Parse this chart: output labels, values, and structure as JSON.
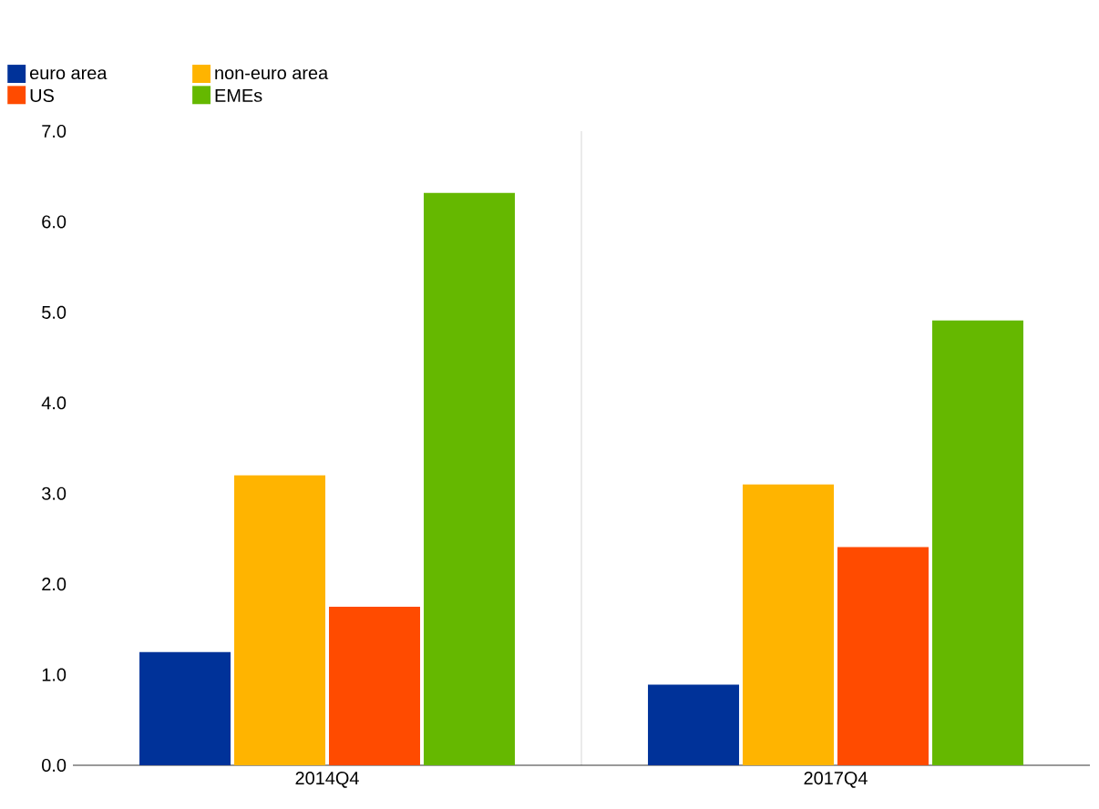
{
  "chart_data": {
    "type": "bar",
    "categories": [
      "2014Q4",
      "2017Q4"
    ],
    "series": [
      {
        "name": "euro area",
        "color": "#003299",
        "values": [
          1.25,
          0.89
        ]
      },
      {
        "name": "non-euro area",
        "color": "#ffb400",
        "values": [
          3.2,
          3.1
        ]
      },
      {
        "name": "US",
        "color": "#ff4b00",
        "values": [
          1.75,
          2.41
        ]
      },
      {
        "name": "EMEs",
        "color": "#65b800",
        "values": [
          6.32,
          4.91
        ]
      }
    ],
    "ylim": [
      0,
      7
    ],
    "yticks": [
      {
        "value": 0,
        "label": "0.0"
      },
      {
        "value": 1,
        "label": "1.0"
      },
      {
        "value": 2,
        "label": "2.0"
      },
      {
        "value": 3,
        "label": "3.0"
      },
      {
        "value": 4,
        "label": "4.0"
      },
      {
        "value": 5,
        "label": "5.0"
      },
      {
        "value": 6,
        "label": "6.0"
      },
      {
        "value": 7,
        "label": "7.0"
      }
    ],
    "grid": "x",
    "legend": "top left"
  }
}
